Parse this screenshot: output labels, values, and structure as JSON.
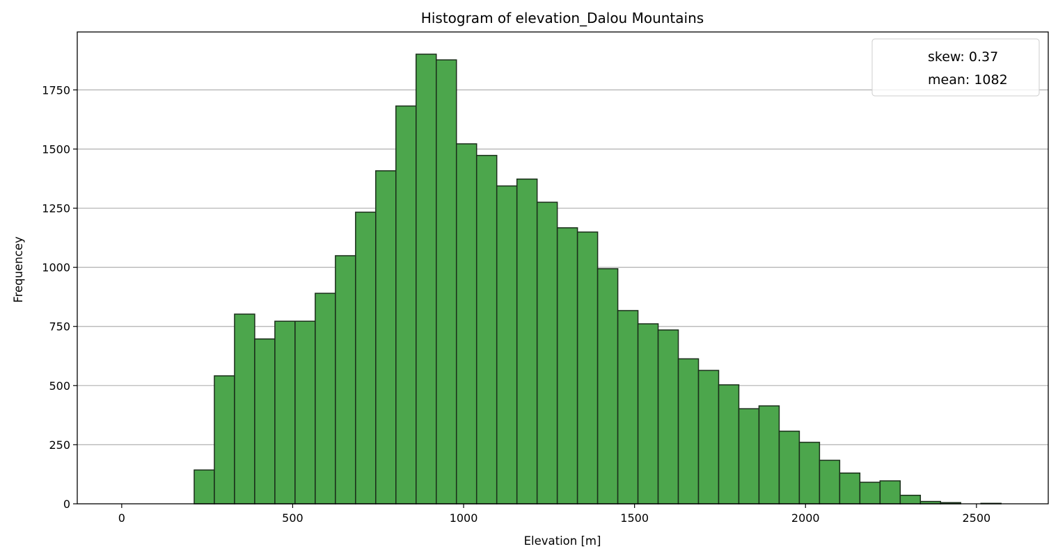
{
  "chart_data": {
    "type": "bar",
    "title": "Histogram of elevation_Dalou Mountains",
    "xlabel": "Elevation [m]",
    "ylabel": "Frequencey",
    "xlim": [
      -130,
      2710
    ],
    "ylim": [
      0,
      1995
    ],
    "bin_width": 59,
    "bins": [
      {
        "x0": 0,
        "value": 0
      },
      {
        "x0": 59,
        "value": 0
      },
      {
        "x0": 118,
        "value": 0
      },
      {
        "x0": 177,
        "value": 0
      },
      {
        "x0": 212,
        "value": 143
      },
      {
        "x0": 271,
        "value": 541
      },
      {
        "x0": 330,
        "value": 802
      },
      {
        "x0": 389,
        "value": 697
      },
      {
        "x0": 448,
        "value": 772
      },
      {
        "x0": 507,
        "value": 772
      },
      {
        "x0": 566,
        "value": 890
      },
      {
        "x0": 625,
        "value": 1049
      },
      {
        "x0": 684,
        "value": 1233
      },
      {
        "x0": 743,
        "value": 1408
      },
      {
        "x0": 802,
        "value": 1682
      },
      {
        "x0": 861,
        "value": 1901
      },
      {
        "x0": 920,
        "value": 1877
      },
      {
        "x0": 979,
        "value": 1522
      },
      {
        "x0": 1038,
        "value": 1473
      },
      {
        "x0": 1097,
        "value": 1344
      },
      {
        "x0": 1156,
        "value": 1373
      },
      {
        "x0": 1215,
        "value": 1275
      },
      {
        "x0": 1274,
        "value": 1167
      },
      {
        "x0": 1333,
        "value": 1149
      },
      {
        "x0": 1392,
        "value": 994
      },
      {
        "x0": 1451,
        "value": 817
      },
      {
        "x0": 1510,
        "value": 761
      },
      {
        "x0": 1569,
        "value": 735
      },
      {
        "x0": 1628,
        "value": 613
      },
      {
        "x0": 1687,
        "value": 564
      },
      {
        "x0": 1746,
        "value": 503
      },
      {
        "x0": 1805,
        "value": 402
      },
      {
        "x0": 1864,
        "value": 414
      },
      {
        "x0": 1923,
        "value": 307
      },
      {
        "x0": 1982,
        "value": 260
      },
      {
        "x0": 2041,
        "value": 184
      },
      {
        "x0": 2100,
        "value": 130
      },
      {
        "x0": 2159,
        "value": 91
      },
      {
        "x0": 2218,
        "value": 97
      },
      {
        "x0": 2277,
        "value": 36
      },
      {
        "x0": 2336,
        "value": 10
      },
      {
        "x0": 2395,
        "value": 5
      },
      {
        "x0": 2454,
        "value": 0
      },
      {
        "x0": 2513,
        "value": 2
      }
    ],
    "xticks": [
      0,
      500,
      1000,
      1500,
      2000,
      2500
    ],
    "yticks": [
      0,
      250,
      500,
      750,
      1000,
      1250,
      1500,
      1750
    ],
    "grid": {
      "y": true,
      "x": false
    },
    "legend": {
      "placement": "top-right",
      "entries": [
        "skew: 0.37",
        "mean: 1082"
      ]
    },
    "colors": {
      "bar_fill": "#4ca64c",
      "bar_edge": "#1a2e1a",
      "grid": "#b0b0b0",
      "axes": "#000000"
    }
  }
}
